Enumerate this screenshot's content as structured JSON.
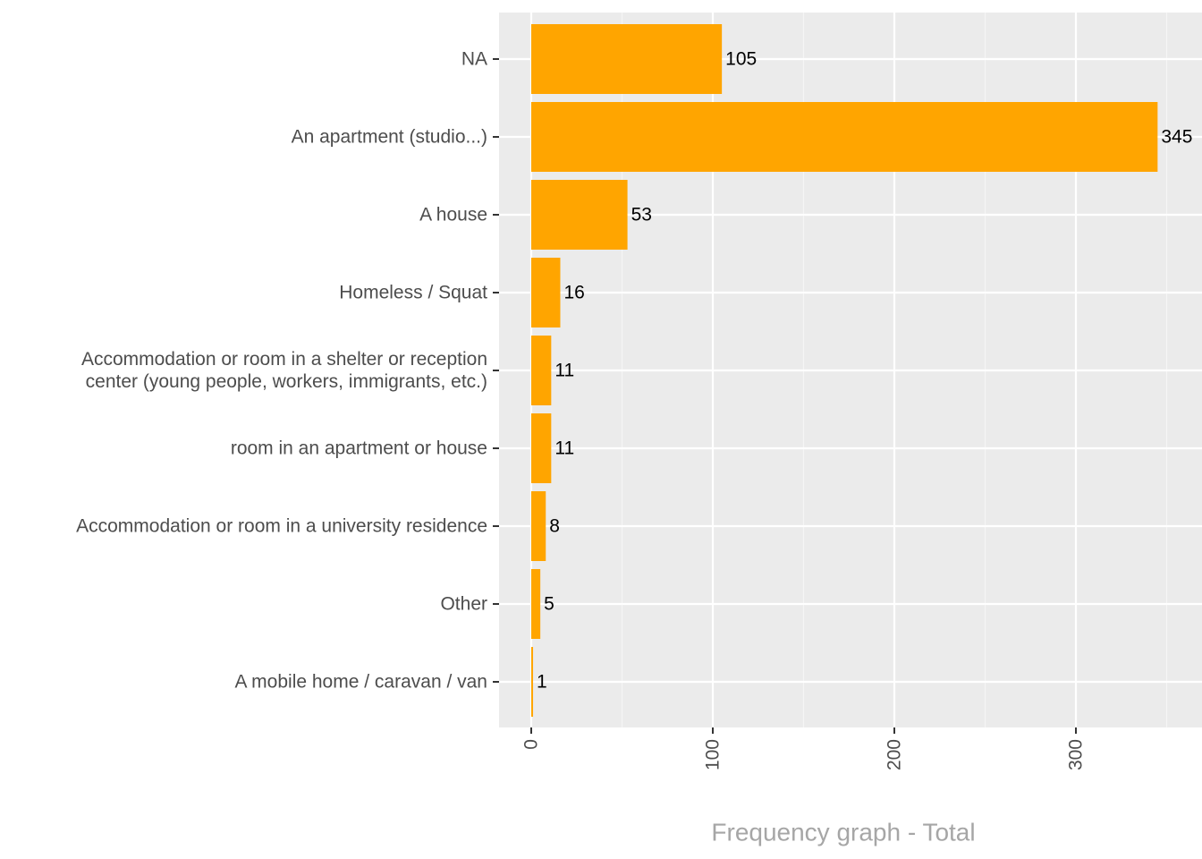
{
  "chart_data": {
    "type": "bar",
    "orientation": "horizontal",
    "categories": [
      "NA",
      "An apartment (studio...)",
      "A house",
      "Homeless / Squat",
      "Accommodation or room in a shelter or reception\ncenter (young people, workers, immigrants, etc.)",
      "room in an apartment or house",
      "Accommodation or room in a university residence",
      "Other",
      "A mobile home / caravan / van"
    ],
    "values": [
      105,
      345,
      53,
      16,
      11,
      11,
      8,
      5,
      1
    ],
    "data_labels": [
      "105",
      "345",
      "53",
      "16",
      "11",
      "11",
      "8",
      "5",
      "1"
    ],
    "title": "",
    "xlabel": "Frequency graph - Total",
    "ylabel": "",
    "xlim": [
      -18,
      363
    ],
    "x_ticks": [
      0,
      100,
      200,
      300
    ],
    "x_tick_labels": [
      "0",
      "100",
      "200",
      "300"
    ],
    "x_tick_rotation": "vertical",
    "grid": true,
    "legend": "none",
    "colors": {
      "bar": "#FFA500",
      "panel_background": "#EBEBEB",
      "grid_major": "#FFFFFF",
      "grid_minor": "#F5F5F5",
      "axis_text": "#4D4D4D",
      "axis_title": "#A6A6A6",
      "data_label": "#000000"
    }
  }
}
